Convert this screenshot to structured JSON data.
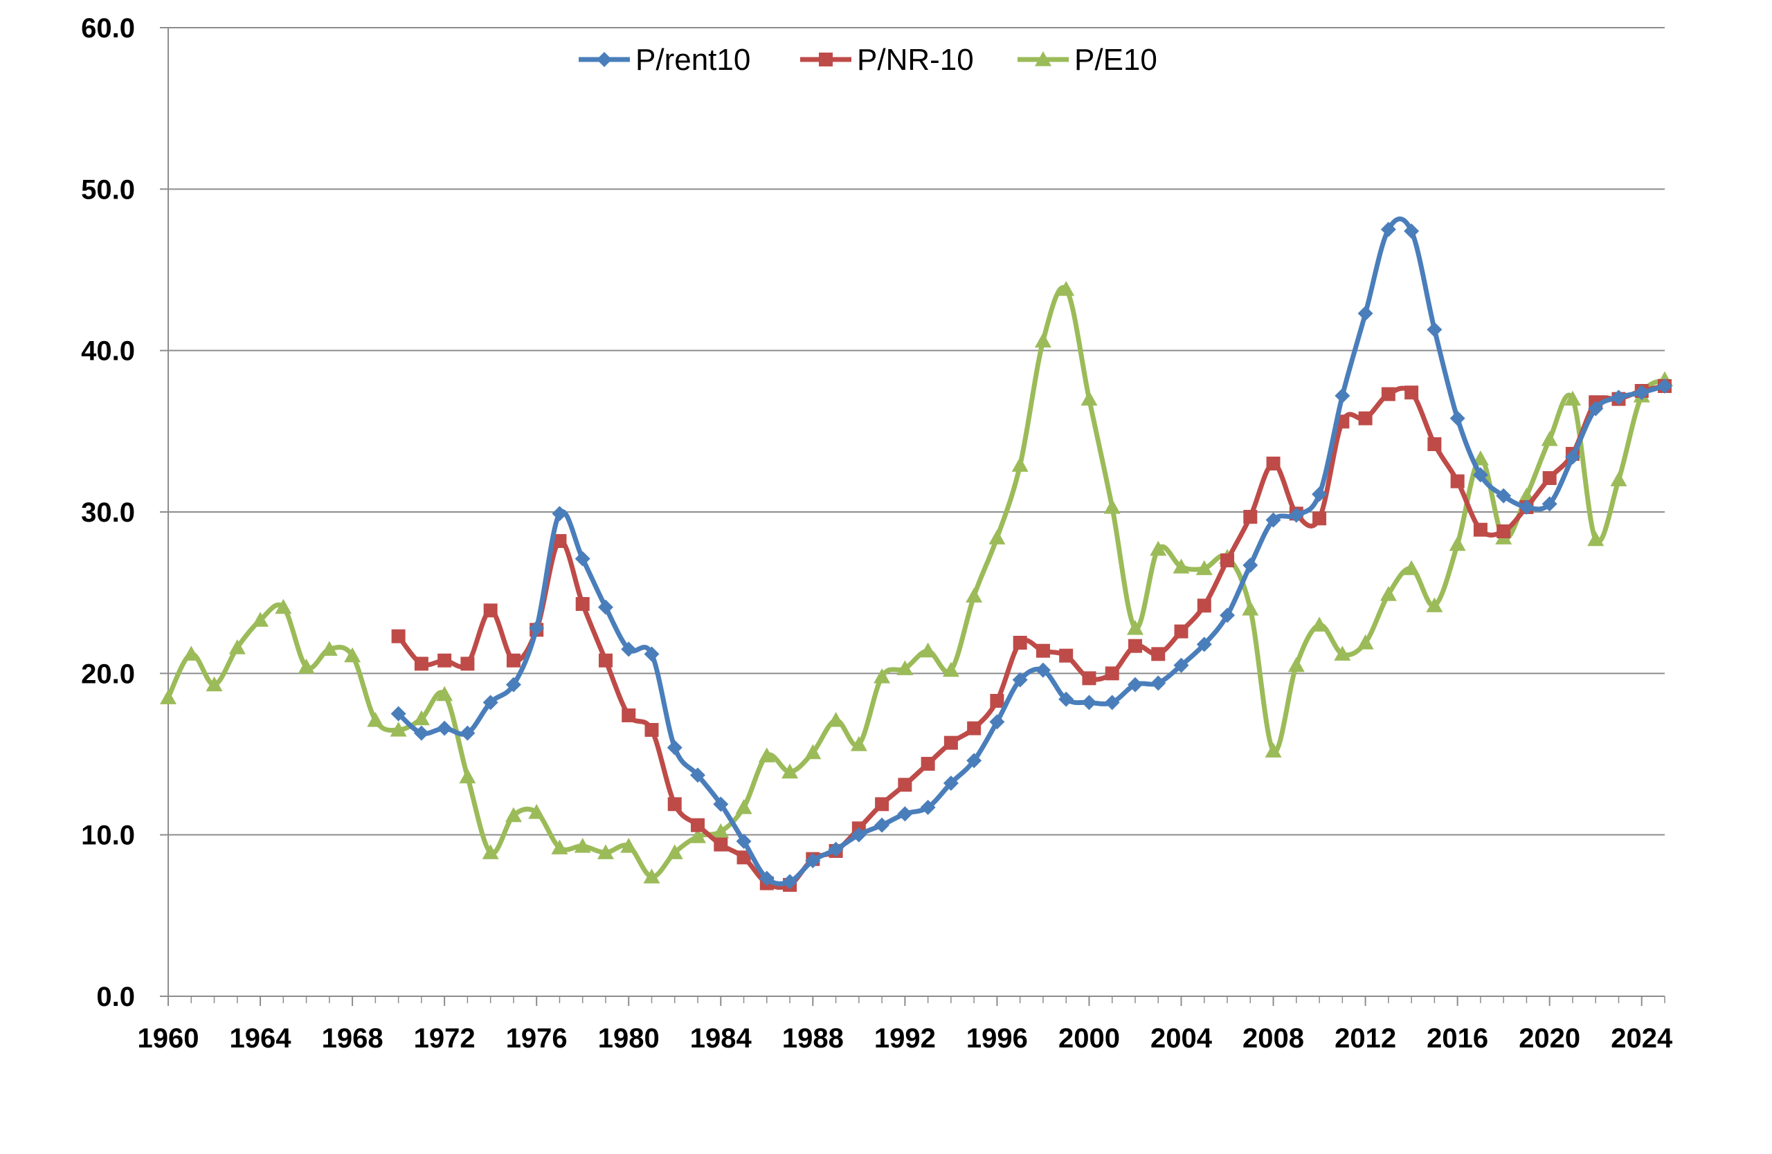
{
  "chart_data": {
    "type": "line",
    "x_start": 1960,
    "x_end": 2025,
    "ylim": [
      0,
      60
    ],
    "yticks": [
      "0.0",
      "10.0",
      "20.0",
      "30.0",
      "40.0",
      "50.0",
      "60.0"
    ],
    "xticks": [
      "1960",
      "1964",
      "1968",
      "1972",
      "1976",
      "1980",
      "1984",
      "1988",
      "1992",
      "1996",
      "2000",
      "2004",
      "2008",
      "2012",
      "2016",
      "2020",
      "2024"
    ],
    "grid": "horizontal",
    "legend_position": "top",
    "series": [
      {
        "name": "P/rent10",
        "color": "#4a7ebb",
        "marker": "diamond",
        "x": [
          1970,
          1971,
          1972,
          1973,
          1974,
          1975,
          1976,
          1977,
          1978,
          1979,
          1980,
          1981,
          1982,
          1983,
          1984,
          1985,
          1986,
          1987,
          1988,
          1989,
          1990,
          1991,
          1992,
          1993,
          1994,
          1995,
          1996,
          1997,
          1998,
          1999,
          2000,
          2001,
          2002,
          2003,
          2004,
          2005,
          2006,
          2007,
          2008,
          2009,
          2010,
          2011,
          2012,
          2013,
          2014,
          2015,
          2016,
          2017,
          2018,
          2019,
          2020,
          2021,
          2022,
          2023,
          2024,
          2025
        ],
        "values": [
          17.5,
          16.3,
          16.6,
          16.3,
          18.2,
          19.3,
          22.8,
          29.9,
          27.1,
          24.1,
          21.5,
          21.2,
          15.4,
          13.7,
          11.9,
          9.6,
          7.3,
          7.1,
          8.4,
          9.1,
          10.0,
          10.6,
          11.3,
          11.7,
          13.2,
          14.6,
          17.0,
          19.6,
          20.2,
          18.4,
          18.2,
          18.2,
          19.3,
          19.4,
          20.5,
          21.8,
          23.6,
          26.7,
          29.5,
          29.8,
          31.1,
          37.2,
          42.3,
          47.5,
          47.4,
          41.3,
          35.8,
          32.3,
          31.0,
          30.3,
          30.5,
          33.4,
          36.4,
          37.1,
          37.4,
          37.8
        ]
      },
      {
        "name": "P/NR-10",
        "color": "#be4b48",
        "marker": "square",
        "x": [
          1970,
          1971,
          1972,
          1973,
          1974,
          1975,
          1976,
          1977,
          1978,
          1979,
          1980,
          1981,
          1982,
          1983,
          1984,
          1985,
          1986,
          1987,
          1988,
          1989,
          1990,
          1991,
          1992,
          1993,
          1994,
          1995,
          1996,
          1997,
          1998,
          1999,
          2000,
          2001,
          2002,
          2003,
          2004,
          2005,
          2006,
          2007,
          2008,
          2009,
          2010,
          2011,
          2012,
          2013,
          2014,
          2015,
          2016,
          2017,
          2018,
          2019,
          2020,
          2021,
          2022,
          2023,
          2024,
          2025
        ],
        "values": [
          22.3,
          20.6,
          20.8,
          20.6,
          23.9,
          20.8,
          22.7,
          28.2,
          24.3,
          20.8,
          17.4,
          16.5,
          11.9,
          10.6,
          9.4,
          8.6,
          7.0,
          6.9,
          8.5,
          9.0,
          10.4,
          11.9,
          13.1,
          14.4,
          15.7,
          16.6,
          18.3,
          21.9,
          21.4,
          21.1,
          19.7,
          20.0,
          21.7,
          21.2,
          22.6,
          24.2,
          27.0,
          29.7,
          33.0,
          29.9,
          29.6,
          35.6,
          35.8,
          37.3,
          37.4,
          34.2,
          31.9,
          28.9,
          28.8,
          30.3,
          32.1,
          33.6,
          36.8,
          37.0,
          37.5,
          37.8
        ]
      },
      {
        "name": "P/E10",
        "color": "#9bbb59",
        "marker": "triangle",
        "x": [
          1960,
          1961,
          1962,
          1963,
          1964,
          1965,
          1966,
          1967,
          1968,
          1969,
          1970,
          1971,
          1972,
          1973,
          1974,
          1975,
          1976,
          1977,
          1978,
          1979,
          1980,
          1981,
          1982,
          1983,
          1984,
          1985,
          1986,
          1987,
          1988,
          1989,
          1990,
          1991,
          1992,
          1993,
          1994,
          1995,
          1996,
          1997,
          1998,
          1999,
          2000,
          2001,
          2002,
          2003,
          2004,
          2005,
          2006,
          2007,
          2008,
          2009,
          2010,
          2011,
          2012,
          2013,
          2014,
          2015,
          2016,
          2017,
          2018,
          2019,
          2020,
          2021,
          2022,
          2023,
          2024,
          2025
        ],
        "values": [
          18.5,
          21.2,
          19.3,
          21.6,
          23.3,
          24.1,
          20.4,
          21.5,
          21.1,
          17.1,
          16.5,
          17.2,
          18.7,
          13.6,
          8.9,
          11.2,
          11.4,
          9.2,
          9.3,
          8.9,
          9.3,
          7.4,
          8.9,
          9.9,
          10.2,
          11.7,
          14.9,
          13.9,
          15.1,
          17.1,
          15.6,
          19.8,
          20.3,
          21.4,
          20.2,
          24.8,
          28.4,
          32.9,
          40.6,
          43.8,
          37.0,
          30.3,
          22.8,
          27.7,
          26.6,
          26.5,
          27.2,
          24.0,
          15.2,
          20.5,
          23.0,
          21.2,
          21.9,
          24.9,
          26.5,
          24.2,
          28.0,
          33.3,
          28.4,
          31.0,
          34.5,
          37.0,
          28.3,
          32.0,
          37.2,
          38.2
        ]
      }
    ]
  }
}
